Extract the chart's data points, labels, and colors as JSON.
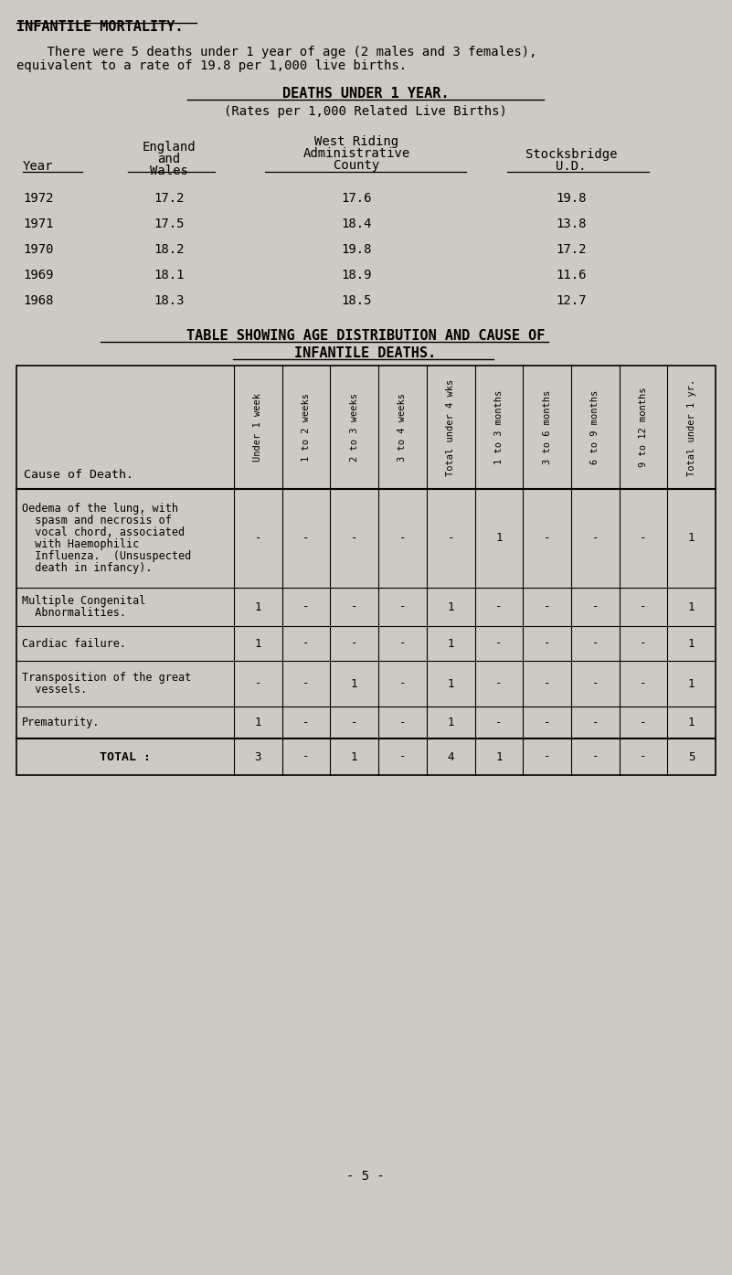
{
  "title": "INFANTILE MORTALITY.",
  "intro_line1": "    There were 5 deaths under 1 year of age (2 males and 3 females),",
  "intro_line2": "equivalent to a rate of 19.8 per 1,000 live births.",
  "table1_title": "DEATHS UNDER 1 YEAR.",
  "table1_subtitle": "(Rates per 1,000 Related Live Births)",
  "t1_year_label": "Year",
  "t1_col1_lines": [
    "England",
    "and",
    "Wales"
  ],
  "t1_col2_lines": [
    "West Riding",
    "Administrative",
    "County"
  ],
  "t1_col3_lines": [
    "Stocksbridge",
    "U.D."
  ],
  "table1_data": [
    [
      "1972",
      "17.2",
      "17.6",
      "19.8"
    ],
    [
      "1971",
      "17.5",
      "18.4",
      "13.8"
    ],
    [
      "1970",
      "18.2",
      "19.8",
      "17.2"
    ],
    [
      "1969",
      "18.1",
      "18.9",
      "11.6"
    ],
    [
      "1968",
      "18.3",
      "18.5",
      "12.7"
    ]
  ],
  "table2_title1": "TABLE SHOWING AGE DISTRIBUTION AND CAUSE OF",
  "table2_title2": "INFANTILE DEATHS.",
  "table2_col_headers": [
    "Under 1 week",
    "1 to 2 weeks",
    "2 to 3 weeks",
    "3 to 4 weeks",
    "Total under 4 wks",
    "1 to 3 months",
    "3 to 6 months",
    "6 to 9 months",
    "9 to 12 months",
    "Total under 1 yr."
  ],
  "cause_of_death_label": "Cause of Death.",
  "table2_causes": [
    [
      "Oedema of the lung, with",
      "  spasm and necrosis of",
      "  vocal chord, associated",
      "  with Haemophilic",
      "  Influenza.  (Unsuspected",
      "  death in infancy)."
    ],
    [
      "Multiple Congenital",
      "  Abnormalities."
    ],
    [
      "Cardiac failure."
    ],
    [
      "Transposition of the great",
      "  vessels."
    ],
    [
      "Prematurity."
    ]
  ],
  "table2_data": [
    [
      "-",
      "-",
      "-",
      "-",
      "-",
      "1",
      "-",
      "-",
      "-",
      "1"
    ],
    [
      "1",
      "-",
      "-",
      "-",
      "1",
      "-",
      "-",
      "-",
      "-",
      "1"
    ],
    [
      "1",
      "-",
      "-",
      "-",
      "1",
      "-",
      "-",
      "-",
      "-",
      "1"
    ],
    [
      "-",
      "-",
      "1",
      "-",
      "1",
      "-",
      "-",
      "-",
      "-",
      "1"
    ],
    [
      "1",
      "-",
      "-",
      "-",
      "1",
      "-",
      "-",
      "-",
      "-",
      "1"
    ]
  ],
  "table2_total_label": "TOTAL :",
  "table2_total": [
    "3",
    "-",
    "1",
    "-",
    "4",
    "1",
    "-",
    "-",
    "-",
    "5"
  ],
  "page_number": "- 5 -",
  "bg_color": "#cccac2"
}
